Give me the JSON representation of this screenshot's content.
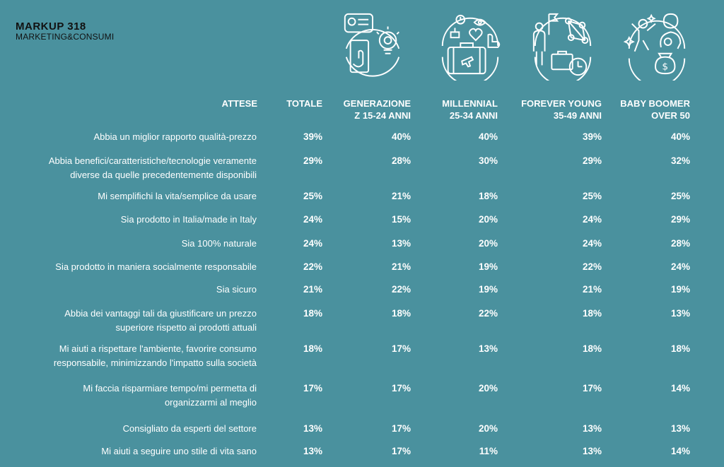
{
  "brand": {
    "title": "MARKUP 318",
    "subtitle": "MARKETING&CONSUMI"
  },
  "icons": [
    "smartphone-idea-icon",
    "travel-suitcase-icon",
    "business-network-icon",
    "family-savings-icon"
  ],
  "colors": {
    "background": "#4a919e",
    "text": "#ffffff",
    "brand": "#111111"
  },
  "chart_data": {
    "type": "table",
    "row_header": "ATTESE",
    "columns": [
      [
        "TOTALE"
      ],
      [
        "GENERAZIONE",
        "Z 15-24 ANNI"
      ],
      [
        "MILLENNIAL",
        "25-34 ANNI"
      ],
      [
        "FOREVER YOUNG",
        "35-49 ANNI"
      ],
      [
        "BABY BOOMER",
        "OVER 50"
      ]
    ],
    "rows": [
      {
        "label": [
          "Abbia un miglior rapporto qualità-prezzo"
        ],
        "values": [
          "39%",
          "40%",
          "40%",
          "39%",
          "40%"
        ]
      },
      {
        "label": [
          "Abbia benefici/caratteristiche/tecnologie veramente",
          "diverse da quelle precedentemente disponibili"
        ],
        "values": [
          "29%",
          "28%",
          "30%",
          "29%",
          "32%"
        ]
      },
      {
        "label": [
          "Mi semplifichi la vita/semplice da usare"
        ],
        "values": [
          "25%",
          "21%",
          "18%",
          "25%",
          "25%"
        ]
      },
      {
        "label": [
          "Sia prodotto in Italia/made in Italy"
        ],
        "values": [
          "24%",
          "15%",
          "20%",
          "24%",
          "29%"
        ]
      },
      {
        "label": [
          "Sia 100% naturale"
        ],
        "values": [
          "24%",
          "13%",
          "20%",
          "24%",
          "28%"
        ]
      },
      {
        "label": [
          "Sia prodotto in maniera socialmente responsabile"
        ],
        "values": [
          "22%",
          "21%",
          "19%",
          "22%",
          "24%"
        ]
      },
      {
        "label": [
          "Sia sicuro"
        ],
        "values": [
          "21%",
          "22%",
          "19%",
          "21%",
          "19%"
        ]
      },
      {
        "label": [
          "Abbia dei vantaggi tali da giustificare un prezzo",
          "superiore rispetto ai prodotti attuali"
        ],
        "values": [
          "18%",
          "18%",
          "22%",
          "18%",
          "13%"
        ]
      },
      {
        "label": [
          "Mi aiuti a rispettare l'ambiente, favorire consumo",
          "responsabile, minimizzando l'impatto sulla società"
        ],
        "values": [
          "18%",
          "17%",
          "13%",
          "18%",
          "18%"
        ]
      },
      {
        "label": [
          "Mi faccia risparmiare tempo/mi permetta di",
          "organizzarmi al meglio"
        ],
        "values": [
          "17%",
          "17%",
          "20%",
          "17%",
          "14%"
        ]
      },
      {
        "label": [
          "Consigliato da esperti del settore"
        ],
        "values": [
          "13%",
          "17%",
          "20%",
          "13%",
          "13%"
        ]
      },
      {
        "label": [
          "Mi aiuti a seguire uno stile di vita sano"
        ],
        "values": [
          "13%",
          "17%",
          "11%",
          "13%",
          "14%"
        ]
      }
    ]
  }
}
